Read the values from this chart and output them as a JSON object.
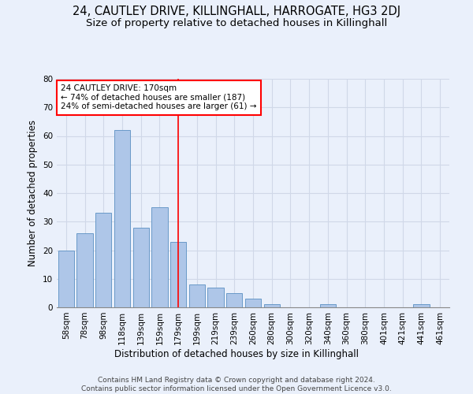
{
  "title1": "24, CAUTLEY DRIVE, KILLINGHALL, HARROGATE, HG3 2DJ",
  "title2": "Size of property relative to detached houses in Killinghall",
  "xlabel": "Distribution of detached houses by size in Killinghall",
  "ylabel": "Number of detached properties",
  "bar_labels": [
    "58sqm",
    "78sqm",
    "98sqm",
    "118sqm",
    "139sqm",
    "159sqm",
    "179sqm",
    "199sqm",
    "219sqm",
    "239sqm",
    "260sqm",
    "280sqm",
    "300sqm",
    "320sqm",
    "340sqm",
    "360sqm",
    "380sqm",
    "401sqm",
    "421sqm",
    "441sqm",
    "461sqm"
  ],
  "bar_values": [
    20,
    26,
    33,
    62,
    28,
    35,
    23,
    8,
    7,
    5,
    3,
    1,
    0,
    0,
    1,
    0,
    0,
    0,
    0,
    1,
    0
  ],
  "bar_color": "#aec6e8",
  "bar_edge_color": "#5a8fc2",
  "grid_color": "#d0d8e8",
  "background_color": "#eaf0fb",
  "vline_x": 6.0,
  "vline_color": "red",
  "annotation_text": "24 CAUTLEY DRIVE: 170sqm\n← 74% of detached houses are smaller (187)\n24% of semi-detached houses are larger (61) →",
  "annotation_box_color": "white",
  "annotation_box_edge": "red",
  "ylim": [
    0,
    80
  ],
  "yticks": [
    0,
    10,
    20,
    30,
    40,
    50,
    60,
    70,
    80
  ],
  "footnote": "Contains HM Land Registry data © Crown copyright and database right 2024.\nContains public sector information licensed under the Open Government Licence v3.0.",
  "title1_fontsize": 10.5,
  "title2_fontsize": 9.5,
  "xlabel_fontsize": 8.5,
  "ylabel_fontsize": 8.5,
  "tick_fontsize": 7.5,
  "annotation_fontsize": 7.5,
  "footnote_fontsize": 6.5
}
